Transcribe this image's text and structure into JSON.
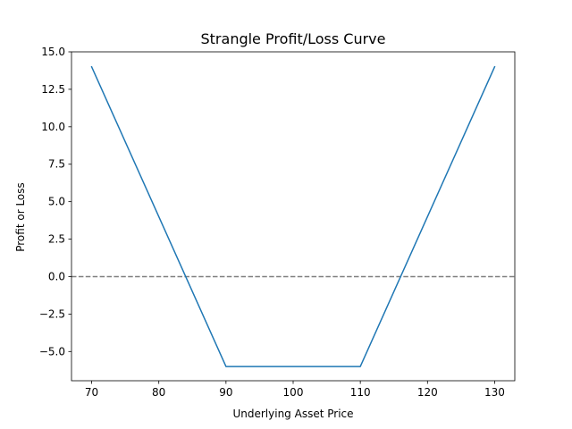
{
  "chart_data": {
    "type": "line",
    "title": "Strangle Profit/Loss Curve",
    "xlabel": "Underlying Asset Price",
    "ylabel": "Profit or Loss",
    "xlim": [
      67,
      133
    ],
    "ylim": [
      -6.95,
      15.0
    ],
    "x_ticks": [
      70,
      80,
      90,
      100,
      110,
      120,
      130
    ],
    "y_ticks": [
      -5.0,
      -2.5,
      0.0,
      2.5,
      5.0,
      7.5,
      10.0,
      12.5,
      15.0
    ],
    "x_tick_labels": [
      "70",
      "80",
      "90",
      "100",
      "110",
      "120",
      "130"
    ],
    "y_tick_labels": [
      "−5.0",
      "−2.5",
      "0.0",
      "2.5",
      "5.0",
      "7.5",
      "10.0",
      "12.5",
      "15.0"
    ],
    "grid": false,
    "legend": "none",
    "series": [
      {
        "color": "#1f77b4",
        "style": "solid",
        "x": [
          70,
          90,
          110,
          130
        ],
        "y": [
          14,
          -6,
          -6,
          14
        ]
      }
    ],
    "reference_lines": [
      {
        "orientation": "horizontal",
        "y": 0,
        "color": "#808080",
        "style": "dashed"
      }
    ]
  }
}
